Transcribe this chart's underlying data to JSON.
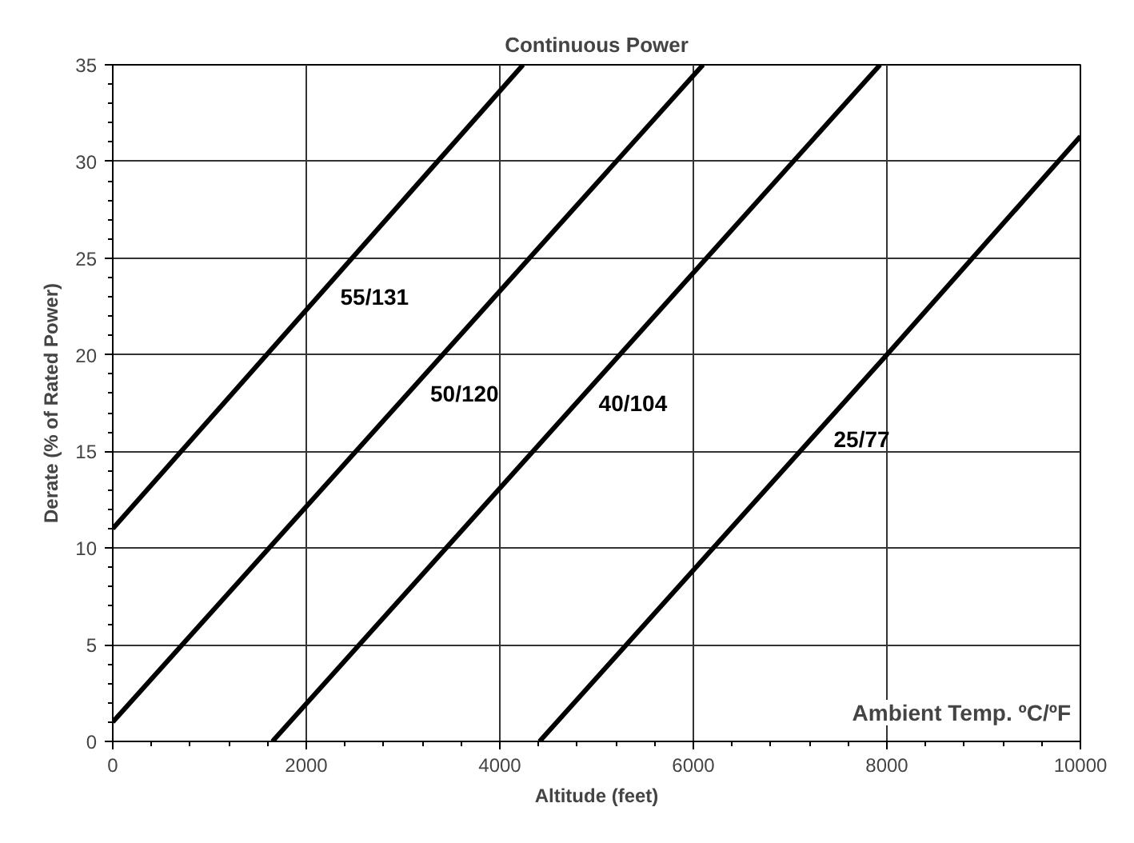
{
  "chart_data": {
    "type": "line",
    "title": "Continuous Power",
    "xlabel": "Altitude (feet)",
    "ylabel": "Derate (% of Rated Power)",
    "series": [
      {
        "name": "55/131",
        "color": "#000000",
        "x": [
          0,
          4240
        ],
        "values": [
          11,
          35
        ]
      },
      {
        "name": "50/120",
        "color": "#000000",
        "x": [
          0,
          6100
        ],
        "values": [
          1,
          35
        ]
      },
      {
        "name": "40/104",
        "color": "#000000",
        "x": [
          1650,
          7930
        ],
        "values": [
          0,
          35
        ]
      },
      {
        "name": "25/77",
        "color": "#000000",
        "x": [
          4410,
          8000,
          10000
        ],
        "values": [
          0,
          20,
          31.3
        ]
      }
    ],
    "annotations": [
      "Ambient Temp. ºC/ºF"
    ],
    "xlim": [
      0,
      10000
    ],
    "xticks": [
      0,
      2000,
      4000,
      6000,
      8000,
      10000
    ],
    "ylim": [
      0,
      35
    ],
    "yticks": [
      0,
      5,
      10,
      15,
      20,
      25,
      30,
      35
    ],
    "grid": true,
    "legend": false,
    "marker": "none",
    "line_style": "solid"
  }
}
